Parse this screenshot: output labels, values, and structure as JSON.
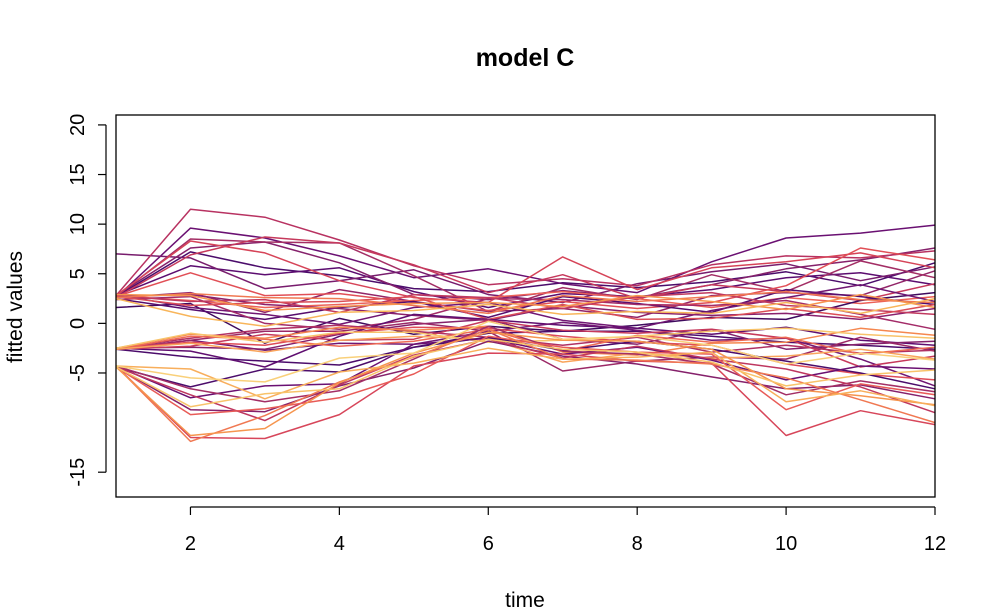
{
  "chart_data": {
    "type": "line",
    "title": "model C",
    "xlabel": "time",
    "ylabel": "fitted values",
    "xlim": [
      1,
      12
    ],
    "ylim": [
      -17.5,
      21
    ],
    "x_ticks": [
      2,
      4,
      6,
      8,
      10,
      12
    ],
    "y_ticks": [
      -15,
      -5,
      0,
      5,
      10,
      15,
      20
    ],
    "grid": false,
    "legend": "none",
    "x": [
      1,
      2,
      3,
      4,
      5,
      6,
      7,
      8,
      9,
      10,
      11,
      12
    ],
    "series": [
      {
        "color": "#4B0C6B",
        "values": [
          2.7,
          7.2,
          5.6,
          4.8,
          3.5,
          3.2,
          4.1,
          3.6,
          4.2,
          5.2,
          3.8,
          6.1
        ]
      },
      {
        "color": "#5C0D70",
        "values": [
          2.8,
          5.8,
          4.9,
          5.6,
          3.2,
          1.6,
          3.0,
          2.7,
          3.4,
          4.6,
          5.1,
          3.9
        ]
      },
      {
        "color": "#6A1072",
        "values": [
          2.6,
          9.6,
          8.6,
          6.8,
          4.6,
          5.5,
          4.0,
          3.1,
          6.2,
          8.6,
          9.1,
          9.9
        ]
      },
      {
        "color": "#781C6D",
        "values": [
          7.0,
          6.6,
          3.5,
          4.3,
          5.4,
          2.9,
          2.1,
          4.0,
          5.2,
          6.0,
          4.3,
          5.7
        ]
      },
      {
        "color": "#85216B",
        "values": [
          2.8,
          7.6,
          8.2,
          6.1,
          2.9,
          2.4,
          3.3,
          2.6,
          3.9,
          5.5,
          6.4,
          7.6
        ]
      },
      {
        "color": "#922568",
        "values": [
          2.6,
          3.1,
          1.1,
          3.4,
          2.2,
          1.2,
          1.5,
          0.6,
          2.8,
          3.1,
          2.8,
          5.3
        ]
      },
      {
        "color": "#A32E65",
        "values": [
          2.7,
          8.5,
          8.2,
          8.1,
          4.8,
          1.2,
          3.6,
          2.4,
          4.9,
          3.2,
          6.3,
          4.6
        ]
      },
      {
        "color": "#B83261",
        "values": [
          2.8,
          11.5,
          10.7,
          8.4,
          5.8,
          3.9,
          4.5,
          3.8,
          5.9,
          6.8,
          6.6,
          7.3
        ]
      },
      {
        "color": "#C6395C",
        "values": [
          2.6,
          6.9,
          8.7,
          8.1,
          5.9,
          3.1,
          4.9,
          2.5,
          3.9,
          3.2,
          2.3,
          4.0
        ]
      },
      {
        "color": "#D64458",
        "values": [
          2.8,
          8.3,
          7.1,
          4.3,
          2.6,
          2.1,
          6.7,
          3.4,
          5.6,
          6.2,
          7.1,
          5.6
        ]
      },
      {
        "color": "#E14F56",
        "values": [
          2.7,
          5.1,
          2.8,
          3.0,
          2.1,
          1.3,
          2.2,
          1.5,
          2.1,
          3.8,
          7.6,
          6.4
        ]
      },
      {
        "color": "#EC6158",
        "values": [
          2.8,
          2.3,
          1.6,
          1.9,
          2.3,
          2.6,
          3.2,
          2.5,
          1.6,
          2.6,
          2.0,
          2.7
        ]
      },
      {
        "color": "#3F0A5E",
        "values": [
          1.6,
          2.0,
          -2.0,
          0.5,
          -1.1,
          -0.3,
          -0.8,
          -0.2,
          0.6,
          0.4,
          2.3,
          3.1
        ]
      },
      {
        "color": "#560D6D",
        "values": [
          2.5,
          1.4,
          0.4,
          1.6,
          2.2,
          0.6,
          2.7,
          2.0,
          1.1,
          3.4,
          2.7,
          1.9
        ]
      },
      {
        "color": "#701673",
        "values": [
          2.9,
          1.6,
          0.9,
          -0.1,
          1.6,
          2.1,
          0.3,
          -0.5,
          1.3,
          2.6,
          3.9,
          2.2
        ]
      },
      {
        "color": "#8A216D",
        "values": [
          2.7,
          2.9,
          1.9,
          1.5,
          0.8,
          0.3,
          1.8,
          1.1,
          0.8,
          1.0,
          0.4,
          1.5
        ]
      },
      {
        "color": "#A32B68",
        "values": [
          2.4,
          2.7,
          0.0,
          -0.6,
          0.4,
          2.5,
          2.4,
          1.9,
          1.8,
          2.3,
          0.9,
          -0.6
        ]
      },
      {
        "color": "#C13A5F",
        "values": [
          2.8,
          2.2,
          2.4,
          1.1,
          2.9,
          2.6,
          1.5,
          2.7,
          3.1,
          1.8,
          1.4,
          0.9
        ]
      },
      {
        "color": "#DB4E57",
        "values": [
          2.7,
          1.8,
          2.1,
          2.2,
          2.7,
          0.4,
          1.9,
          0.4,
          0.5,
          1.5,
          0.6,
          1.9
        ]
      },
      {
        "color": "#F07852",
        "values": [
          2.6,
          3.0,
          2.6,
          2.5,
          1.8,
          1.0,
          2.8,
          2.2,
          2.7,
          3.2,
          2.4,
          2.1
        ]
      },
      {
        "color": "#F6954E",
        "values": [
          2.9,
          2.8,
          1.3,
          1.7,
          2.0,
          2.1,
          1.7,
          2.8,
          2.2,
          1.4,
          2.9,
          1.6
        ]
      },
      {
        "color": "#F8B55A",
        "values": [
          2.5,
          0.7,
          -0.3,
          1.1,
          1.3,
          1.9,
          0.9,
          1.2,
          1.0,
          2.1,
          1.0,
          2.5
        ]
      },
      {
        "color": "#4B0C6B",
        "values": [
          -2.6,
          -3.4,
          -3.8,
          -4.2,
          -2.4,
          -1.0,
          -0.8,
          -0.8,
          -1.3,
          -1.9,
          -2.2,
          -2.6
        ]
      },
      {
        "color": "#5F0E70",
        "values": [
          -2.5,
          -2.8,
          -4.4,
          -1.3,
          0.9,
          0.4,
          -0.2,
          -0.5,
          -1.1,
          -0.4,
          -1.7,
          -2.2
        ]
      },
      {
        "color": "#701673",
        "values": [
          -2.6,
          -1.7,
          -2.7,
          -2.0,
          -2.1,
          -0.8,
          0.1,
          -0.7,
          -1.7,
          -1.5,
          -3.6,
          -6.3
        ]
      },
      {
        "color": "#85216B",
        "values": [
          -2.5,
          -2.4,
          -2.6,
          -1.1,
          -0.1,
          0.4,
          -1.6,
          -2.1,
          -0.6,
          -2.6,
          -2.1,
          -1.8
        ]
      },
      {
        "color": "#9B2866",
        "values": [
          -2.6,
          -1.7,
          -0.8,
          -0.8,
          0.1,
          -0.8,
          -4.8,
          -3.8,
          -3.4,
          -3.6,
          -1.4,
          -2.8
        ]
      },
      {
        "color": "#B03063",
        "values": [
          -2.5,
          -1.5,
          -0.6,
          -0.2,
          -0.8,
          -1.4,
          -2.2,
          -1.4,
          -2.9,
          -2.2,
          -3.0,
          -2.7
        ]
      },
      {
        "color": "#C6395C",
        "values": [
          -2.6,
          -2.3,
          -1.1,
          -1.7,
          -1.6,
          0.3,
          -0.7,
          -1.0,
          -0.6,
          -1.5,
          -4.4,
          -3.3
        ]
      },
      {
        "color": "#DE4C57",
        "values": [
          -2.5,
          -1.9,
          -2.2,
          -1.0,
          -0.4,
          -0.5,
          -1.3,
          -1.9,
          -2.2,
          -4.1,
          -5.1,
          -5.7
        ]
      },
      {
        "color": "#EE6A55",
        "values": [
          -2.6,
          -1.3,
          -1.6,
          -2.3,
          -1.8,
          -0.6,
          -2.8,
          -1.2,
          -1.9,
          -1.4,
          -3.1,
          -2.4
        ]
      },
      {
        "color": "#F5874F",
        "values": [
          -2.5,
          -1.1,
          -1.5,
          -0.4,
          -0.7,
          -0.3,
          -2.9,
          -3.2,
          -2.0,
          -1.9,
          -0.5,
          -1.2
        ]
      },
      {
        "color": "#F9A45B",
        "values": [
          -2.6,
          -2.0,
          -2.9,
          -1.7,
          -1.3,
          -1.6,
          -3.9,
          -3.0,
          -3.5,
          -3.3,
          -2.6,
          -3.6
        ]
      },
      {
        "color": "#F8C36A",
        "values": [
          -2.5,
          -1.0,
          -1.9,
          -0.9,
          -0.9,
          -1.9,
          -1.7,
          -1.3,
          -0.8,
          -0.5,
          -1.1,
          -1.5
        ]
      },
      {
        "color": "#4B0C6B",
        "values": [
          -4.4,
          -6.4,
          -4.6,
          -4.9,
          -2.4,
          -1.4,
          -2.7,
          -1.8,
          -2.6,
          -3.8,
          -5.0,
          -6.6
        ]
      },
      {
        "color": "#6A1072",
        "values": [
          -4.3,
          -7.5,
          -6.3,
          -6.1,
          -2.1,
          -1.5,
          -3.1,
          -2.4,
          -3.7,
          -5.7,
          -4.3,
          -4.6
        ]
      },
      {
        "color": "#85216B",
        "values": [
          -4.4,
          -8.7,
          -8.9,
          -6.3,
          -4.5,
          -1.8,
          -3.3,
          -4.1,
          -5.4,
          -6.6,
          -6.2,
          -7.6
        ]
      },
      {
        "color": "#A32E65",
        "values": [
          -4.3,
          -6.6,
          -7.9,
          -6.8,
          -3.6,
          -0.3,
          -2.8,
          -3.1,
          -4.1,
          -7.2,
          -5.8,
          -6.9
        ]
      },
      {
        "color": "#BE365F",
        "values": [
          -4.4,
          -7.2,
          -9.8,
          -6.2,
          -3.2,
          -1.6,
          -3.5,
          -2.3,
          -3.6,
          -4.6,
          -6.4,
          -9.0
        ]
      },
      {
        "color": "#D7465A",
        "values": [
          -4.3,
          -11.5,
          -11.6,
          -9.2,
          -4.3,
          -3.0,
          -3.1,
          -3.8,
          -4.0,
          -11.3,
          -8.8,
          -10.2
        ]
      },
      {
        "color": "#E85B57",
        "values": [
          -4.4,
          -9.2,
          -8.6,
          -7.5,
          -5.1,
          -1.3,
          -2.4,
          -2.9,
          -3.1,
          -8.7,
          -6.1,
          -7.2
        ]
      },
      {
        "color": "#F07852",
        "values": [
          -4.3,
          -11.9,
          -9.3,
          -5.9,
          -3.4,
          -0.6,
          -3.6,
          -3.7,
          -4.1,
          -5.5,
          -7.7,
          -10.0
        ]
      },
      {
        "color": "#F6954E",
        "values": [
          -4.4,
          -11.3,
          -10.6,
          -6.0,
          -3.0,
          -0.9,
          -1.7,
          -1.8,
          -2.6,
          -6.6,
          -7.3,
          -8.2
        ]
      },
      {
        "color": "#F8AE5B",
        "values": [
          -4.3,
          -4.6,
          -7.6,
          -4.9,
          -4.0,
          -2.5,
          -3.6,
          -3.4,
          -2.9,
          -7.9,
          -6.8,
          -8.3
        ]
      },
      {
        "color": "#F8C36A",
        "values": [
          -4.4,
          -8.4,
          -7.1,
          -6.6,
          -3.3,
          -1.6,
          -2.6,
          -2.9,
          -3.9,
          -6.3,
          -5.2,
          -4.7
        ]
      },
      {
        "color": "#F9D07A",
        "values": [
          -4.3,
          -5.5,
          -5.9,
          -3.5,
          -3.0,
          0.2,
          -1.6,
          -1.3,
          -2.2,
          -4.1,
          -3.0,
          -3.7
        ]
      }
    ]
  }
}
